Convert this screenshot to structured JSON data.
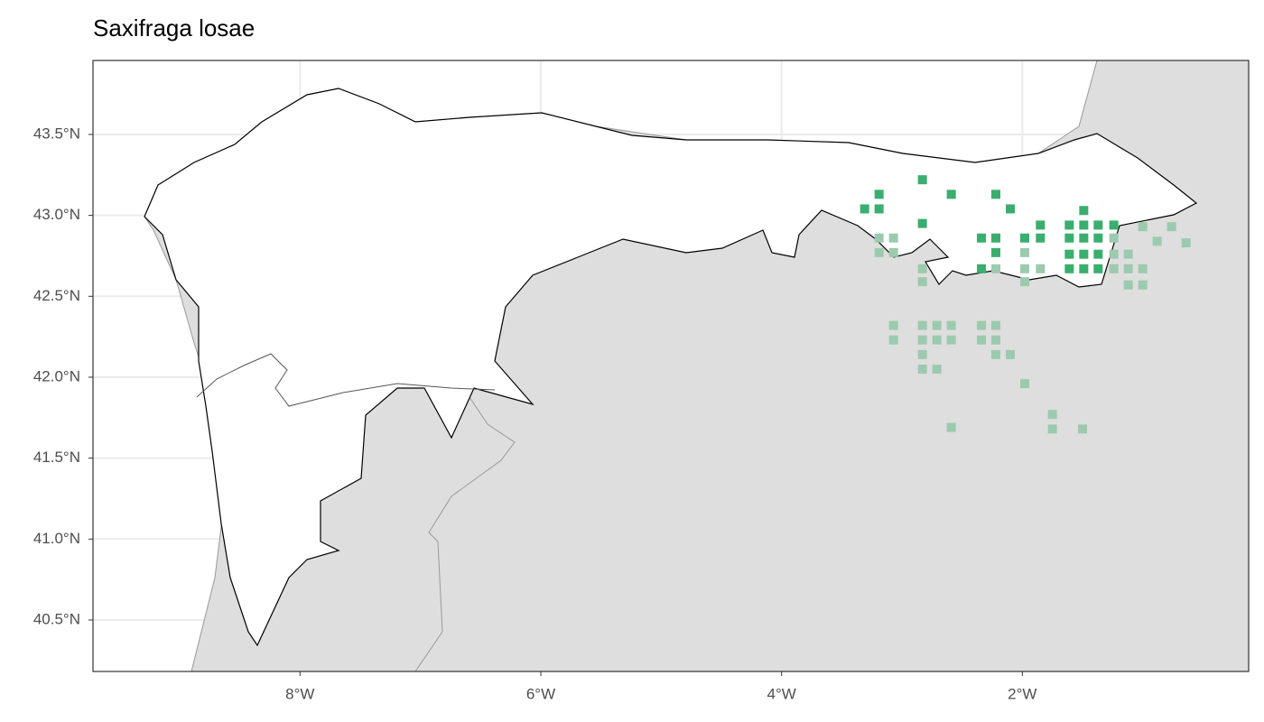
{
  "chart_data": {
    "type": "scatter",
    "title": "Saxifraga losae",
    "xlim": [
      -9.72,
      -0.12
    ],
    "ylim": [
      40.182,
      43.957
    ],
    "xticks": [
      {
        "value": -8,
        "label": "8°W"
      },
      {
        "value": -6,
        "label": "6°W"
      },
      {
        "value": -4,
        "label": "4°W"
      },
      {
        "value": -2,
        "label": "2°W"
      }
    ],
    "yticks": [
      {
        "value": 40.5,
        "label": "40.5°N"
      },
      {
        "value": 41.0,
        "label": "41.0°N"
      },
      {
        "value": 41.5,
        "label": "41.5°N"
      },
      {
        "value": 42.0,
        "label": "42.0°N"
      },
      {
        "value": 42.5,
        "label": "42.5°N"
      },
      {
        "value": 43.0,
        "label": "43.0°N"
      },
      {
        "value": 43.5,
        "label": "43.5°N"
      }
    ],
    "grid": true,
    "series": [
      {
        "color": "#3aae6e",
        "x": [
          -2.83,
          -3.19,
          -2.59,
          -2.22,
          -3.31,
          -3.19,
          -2.1,
          -2.83,
          -2.34,
          -2.22,
          -1.98,
          -1.85,
          -1.85,
          -1.61,
          -1.49,
          -1.37,
          -1.24,
          -1.49,
          -1.61,
          -1.49,
          -1.37,
          -2.22,
          -1.61,
          -1.49,
          -1.37,
          -2.34,
          -1.61,
          -1.49,
          -1.37
        ],
        "y": [
          43.22,
          43.13,
          43.13,
          43.13,
          43.04,
          43.04,
          43.04,
          42.95,
          42.86,
          42.86,
          42.86,
          42.86,
          42.94,
          42.94,
          42.94,
          42.94,
          42.94,
          43.03,
          42.86,
          42.86,
          42.86,
          42.77,
          42.76,
          42.76,
          42.76,
          42.67,
          42.67,
          42.67,
          42.67
        ]
      },
      {
        "color": "#9ccaae",
        "x": [
          -3.19,
          -3.07,
          -3.19,
          -3.07,
          -2.83,
          -2.83,
          -2.22,
          -1.98,
          -1.98,
          -1.85,
          -1.98,
          -1.24,
          -1.24,
          -1.12,
          -1.24,
          -1.12,
          -1.0,
          -1.12,
          -1.0,
          -1.0,
          -0.88,
          -0.76,
          -0.64,
          -3.07,
          -3.07,
          -2.83,
          -2.71,
          -2.59,
          -2.83,
          -2.71,
          -2.59,
          -2.34,
          -2.22,
          -2.34,
          -2.22,
          -2.83,
          -2.22,
          -2.1,
          -2.83,
          -2.71,
          -1.98,
          -2.59,
          -1.75,
          -1.75,
          -1.5
        ],
        "y": [
          42.86,
          42.86,
          42.77,
          42.77,
          42.67,
          42.59,
          42.67,
          42.77,
          42.67,
          42.67,
          42.59,
          42.86,
          42.76,
          42.76,
          42.67,
          42.67,
          42.67,
          42.57,
          42.57,
          42.93,
          42.84,
          42.93,
          42.83,
          42.32,
          42.23,
          42.32,
          42.32,
          42.32,
          42.23,
          42.23,
          42.23,
          42.32,
          42.32,
          42.23,
          42.23,
          42.14,
          42.14,
          42.14,
          42.05,
          42.05,
          41.96,
          41.69,
          41.77,
          41.68,
          41.68
        ]
      }
    ]
  }
}
